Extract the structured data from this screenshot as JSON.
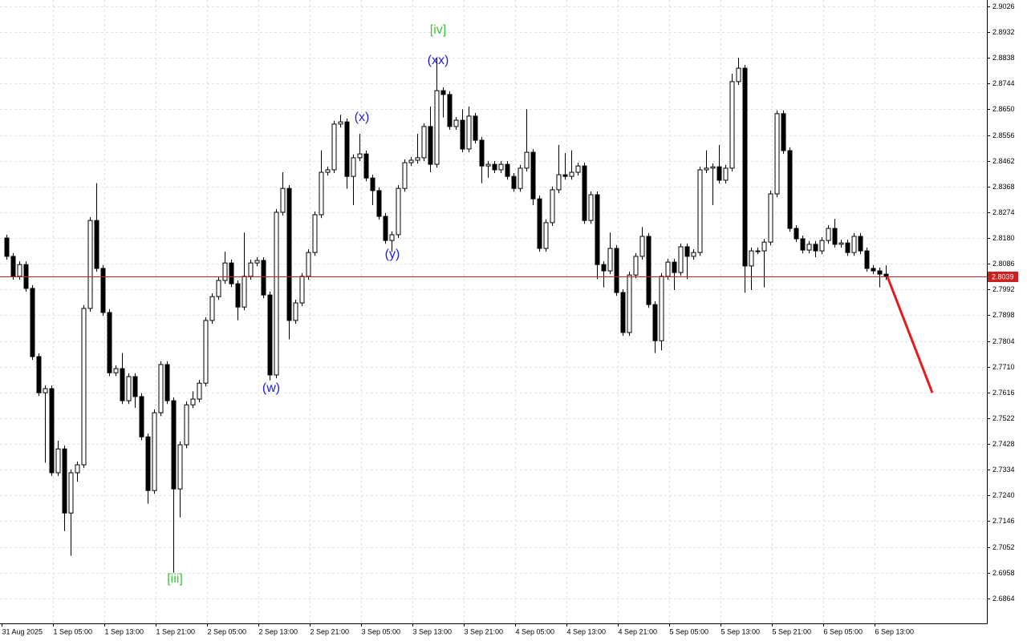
{
  "chart_data": {
    "type": "candlestick",
    "ylim": [
      2.6773,
      2.9049
    ],
    "yticks": [
      2.9026,
      2.8932,
      2.8838,
      2.8744,
      {
        "value": 2.865,
        "label": "2.8650"
      },
      2.8556,
      2.8462,
      2.8368,
      2.8274,
      {
        "value": 2.818,
        "label": "2.8180"
      },
      2.8086,
      2.7992,
      2.7898,
      2.7804,
      {
        "value": 2.771,
        "label": "2.7710"
      },
      2.7616,
      2.7522,
      2.7428,
      2.7334,
      {
        "value": 2.724,
        "label": "2.7240"
      },
      2.7146,
      2.7052,
      2.6958,
      2.6864
    ],
    "grid": true,
    "up_color": "#ffffff",
    "down_color": "#000000",
    "categories": [
      "31 Aug 2025",
      null,
      null,
      null,
      null,
      null,
      null,
      null,
      "1 Sep 05:00",
      null,
      null,
      null,
      null,
      null,
      null,
      null,
      "1 Sep 13:00",
      null,
      null,
      null,
      null,
      null,
      null,
      null,
      "1 Sep 21:00",
      null,
      null,
      null,
      null,
      null,
      null,
      null,
      "2 Sep 05:00",
      null,
      null,
      null,
      null,
      null,
      null,
      null,
      "2 Sep 13:00",
      null,
      null,
      null,
      null,
      null,
      null,
      null,
      "2 Sep 21:00",
      null,
      null,
      null,
      null,
      null,
      null,
      null,
      "3 Sep 05:00",
      null,
      null,
      null,
      null,
      null,
      null,
      null,
      "3 Sep 13:00",
      null,
      null,
      null,
      null,
      null,
      null,
      null,
      "3 Sep 21:00",
      null,
      null,
      null,
      null,
      null,
      null,
      null,
      "4 Sep 05:00",
      null,
      null,
      null,
      null,
      null,
      null,
      null,
      "4 Sep 13:00",
      null,
      null,
      null,
      null,
      null,
      null,
      null,
      "4 Sep 21:00",
      null,
      null,
      null,
      null,
      null,
      null,
      null,
      "5 Sep 05:00",
      null,
      null,
      null,
      null,
      null,
      null,
      null,
      "5 Sep 13:00",
      null,
      null,
      null,
      null,
      null,
      null,
      null,
      "5 Sep 21:00",
      null,
      null,
      null,
      null,
      null,
      null,
      null,
      "6 Sep 05:00",
      null,
      null,
      null,
      null,
      null,
      null,
      null,
      "6 Sep 13:00",
      null
    ],
    "ohlc": [
      [
        2.818,
        2.8192,
        2.8101,
        2.8113
      ],
      [
        2.8113,
        2.8125,
        2.8028,
        2.804
      ],
      [
        2.804,
        2.8095,
        2.8028,
        2.8083
      ],
      [
        2.8083,
        2.8095,
        2.7984,
        2.7996
      ],
      [
        2.7996,
        2.8008,
        2.7735,
        2.7747
      ],
      [
        2.7747,
        2.7759,
        2.7603,
        2.7615
      ],
      [
        2.7615,
        2.7642,
        2.736,
        2.763
      ],
      [
        2.763,
        2.7642,
        2.7311,
        2.7323
      ],
      [
        2.7323,
        2.744,
        2.7311,
        2.741
      ],
      [
        2.741,
        2.7422,
        2.711,
        2.7176
      ],
      [
        2.7176,
        2.7335,
        2.702,
        2.7323
      ],
      [
        2.7323,
        2.7364,
        2.729,
        2.7352
      ],
      [
        2.7352,
        2.7935,
        2.734,
        2.7923
      ],
      [
        2.7923,
        2.8256,
        2.7911,
        2.8244
      ],
      [
        2.8244,
        2.838,
        2.8057,
        2.8069
      ],
      [
        2.8069,
        2.8081,
        2.7896,
        2.7908
      ],
      [
        2.7908,
        2.792,
        2.7676,
        2.7688
      ],
      [
        2.7688,
        2.7715,
        2.7676,
        2.7703
      ],
      [
        2.7703,
        2.776,
        2.7574,
        2.7586
      ],
      [
        2.7586,
        2.7686,
        2.7574,
        2.7674
      ],
      [
        2.7674,
        2.7686,
        2.756,
        2.7601
      ],
      [
        2.7601,
        2.7613,
        2.7442,
        2.7454
      ],
      [
        2.7454,
        2.7466,
        2.721,
        2.7258
      ],
      [
        2.7258,
        2.7554,
        2.7246,
        2.7542
      ],
      [
        2.7542,
        2.773,
        2.753,
        2.7718
      ],
      [
        2.7718,
        2.773,
        2.7574,
        2.7586
      ],
      [
        2.7586,
        2.7598,
        2.6958,
        2.7264
      ],
      [
        2.7264,
        2.7437,
        2.716,
        2.7425
      ],
      [
        2.7425,
        2.7583,
        2.7413,
        2.7571
      ],
      [
        2.7571,
        2.762,
        2.7559,
        2.7592
      ],
      [
        2.7592,
        2.7662,
        2.758,
        2.765
      ],
      [
        2.765,
        2.7891,
        2.7638,
        2.7879
      ],
      [
        2.7879,
        2.7978,
        2.7867,
        2.7966
      ],
      [
        2.7966,
        2.8037,
        2.7954,
        2.8025
      ],
      [
        2.8025,
        2.813,
        2.8013,
        2.8089
      ],
      [
        2.8089,
        2.8101,
        2.8001,
        2.8013
      ],
      [
        2.8013,
        2.8025,
        2.788,
        2.7928
      ],
      [
        2.7928,
        2.82,
        2.7916,
        2.804
      ],
      [
        2.804,
        2.8101,
        2.8028,
        2.8089
      ],
      [
        2.8089,
        2.811,
        2.8077,
        2.8098
      ],
      [
        2.8098,
        2.811,
        2.796,
        2.7972
      ],
      [
        2.7972,
        2.7984,
        2.766,
        2.768
      ],
      [
        2.768,
        2.8286,
        2.7668,
        2.8274
      ],
      [
        2.8274,
        2.842,
        2.8262,
        2.8361
      ],
      [
        2.8361,
        2.8373,
        2.781,
        2.7879
      ],
      [
        2.7879,
        2.7955,
        2.7867,
        2.7943
      ],
      [
        2.7943,
        2.8052,
        2.7931,
        2.804
      ],
      [
        2.804,
        2.8139,
        2.8028,
        2.8127
      ],
      [
        2.8127,
        2.8277,
        2.8115,
        2.8265
      ],
      [
        2.8265,
        2.85,
        2.8253,
        2.842
      ],
      [
        2.842,
        2.8441,
        2.8408,
        2.8429
      ],
      [
        2.8429,
        2.8608,
        2.8417,
        2.8596
      ],
      [
        2.8596,
        2.863,
        2.8584,
        2.8604
      ],
      [
        2.8604,
        2.8616,
        2.836,
        2.8405
      ],
      [
        2.8405,
        2.8485,
        2.83,
        2.8473
      ],
      [
        2.8473,
        2.856,
        2.8461,
        2.8487
      ],
      [
        2.8487,
        2.8499,
        2.8387,
        2.8399
      ],
      [
        2.8399,
        2.8411,
        2.83,
        2.8353
      ],
      [
        2.8353,
        2.8365,
        2.8247,
        2.8259
      ],
      [
        2.8259,
        2.8271,
        2.8159,
        2.8171
      ],
      [
        2.8171,
        2.8204,
        2.813,
        2.8192
      ],
      [
        2.8192,
        2.8373,
        2.818,
        2.8361
      ],
      [
        2.8361,
        2.8467,
        2.8349,
        2.8455
      ],
      [
        2.8455,
        2.8476,
        2.8443,
        2.8464
      ],
      [
        2.8464,
        2.856,
        2.8452,
        2.8473
      ],
      [
        2.8473,
        2.8599,
        2.8461,
        2.8587
      ],
      [
        2.8587,
        2.866,
        2.842,
        2.8449
      ],
      [
        2.8449,
        2.8838,
        2.8437,
        2.8718
      ],
      [
        2.8718,
        2.873,
        2.862,
        2.8704
      ],
      [
        2.8704,
        2.8716,
        2.8575,
        2.8587
      ],
      [
        2.8587,
        2.8622,
        2.8575,
        2.861
      ],
      [
        2.861,
        2.865,
        2.8493,
        2.8505
      ],
      [
        2.8505,
        2.866,
        2.8493,
        2.8625
      ],
      [
        2.8625,
        2.8637,
        2.8525,
        2.8537
      ],
      [
        2.8537,
        2.8549,
        2.838,
        2.8443
      ],
      [
        2.8443,
        2.8461,
        2.84,
        2.8449
      ],
      [
        2.8449,
        2.8461,
        2.8417,
        2.8429
      ],
      [
        2.8429,
        2.8461,
        2.8417,
        2.8449
      ],
      [
        2.8449,
        2.8461,
        2.8393,
        2.8405
      ],
      [
        2.8405,
        2.8417,
        2.8349,
        2.8361
      ],
      [
        2.8361,
        2.8447,
        2.8349,
        2.8435
      ],
      [
        2.8435,
        2.865,
        2.8423,
        2.8493
      ],
      [
        2.8493,
        2.8505,
        2.83,
        2.8323
      ],
      [
        2.8323,
        2.8335,
        2.813,
        2.8142
      ],
      [
        2.8142,
        2.8248,
        2.813,
        2.8236
      ],
      [
        2.8236,
        2.8368,
        2.8224,
        2.8356
      ],
      [
        2.8356,
        2.852,
        2.8344,
        2.8411
      ],
      [
        2.8411,
        2.849,
        2.8393,
        2.8405
      ],
      [
        2.8405,
        2.85,
        2.8393,
        2.842
      ],
      [
        2.842,
        2.8455,
        2.8408,
        2.8443
      ],
      [
        2.8443,
        2.8455,
        2.8232,
        2.8244
      ],
      [
        2.8244,
        2.835,
        2.8232,
        2.8338
      ],
      [
        2.8338,
        2.835,
        2.803,
        2.8083
      ],
      [
        2.8083,
        2.8095,
        2.8,
        2.806
      ],
      [
        2.806,
        2.82,
        2.8048,
        2.8142
      ],
      [
        2.8142,
        2.8154,
        2.7969,
        2.7981
      ],
      [
        2.7981,
        2.7993,
        2.7823,
        2.7835
      ],
      [
        2.7835,
        2.8057,
        2.7823,
        2.8045
      ],
      [
        2.8045,
        2.8125,
        2.8033,
        2.8113
      ],
      [
        2.8113,
        2.822,
        2.8101,
        2.8186
      ],
      [
        2.8186,
        2.8198,
        2.7925,
        2.7937
      ],
      [
        2.7937,
        2.7949,
        2.776,
        2.7805
      ],
      [
        2.7805,
        2.8052,
        2.777,
        2.804
      ],
      [
        2.804,
        2.8104,
        2.8028,
        2.8092
      ],
      [
        2.8092,
        2.8104,
        2.799,
        2.8054
      ],
      [
        2.8054,
        2.816,
        2.8042,
        2.8148
      ],
      [
        2.8148,
        2.816,
        2.803,
        2.8113
      ],
      [
        2.8113,
        2.8139,
        2.8101,
        2.8127
      ],
      [
        2.8127,
        2.8441,
        2.8115,
        2.8429
      ],
      [
        2.8429,
        2.85,
        2.8417,
        2.8435
      ],
      [
        2.8435,
        2.8452,
        2.83,
        2.844
      ],
      [
        2.844,
        2.852,
        2.8379,
        2.8391
      ],
      [
        2.8391,
        2.8447,
        2.8379,
        2.8435
      ],
      [
        2.8435,
        2.878,
        2.8423,
        2.8751
      ],
      [
        2.8751,
        2.8838,
        2.8739,
        2.88
      ],
      [
        2.88,
        2.8812,
        2.798,
        2.8078
      ],
      [
        2.8078,
        2.8145,
        2.799,
        2.8133
      ],
      [
        2.8133,
        2.8145,
        2.8121,
        2.8133
      ],
      [
        2.8133,
        2.8177,
        2.8,
        2.8165
      ],
      [
        2.8165,
        2.8353,
        2.8153,
        2.8341
      ],
      [
        2.8341,
        2.8646,
        2.8329,
        2.8634
      ],
      [
        2.8634,
        2.8646,
        2.8487,
        2.8499
      ],
      [
        2.8499,
        2.8511,
        2.8203,
        2.8215
      ],
      [
        2.8215,
        2.8227,
        2.8165,
        2.8177
      ],
      [
        2.8177,
        2.8189,
        2.8124,
        2.8136
      ],
      [
        2.8136,
        2.8169,
        2.8124,
        2.8157
      ],
      [
        2.8157,
        2.8169,
        2.811,
        2.8133
      ],
      [
        2.8133,
        2.8183,
        2.8121,
        2.8171
      ],
      [
        2.8171,
        2.8227,
        2.8159,
        2.8215
      ],
      [
        2.8215,
        2.825,
        2.8145,
        2.8157
      ],
      [
        2.8157,
        2.8174,
        2.8145,
        2.8162
      ],
      [
        2.8162,
        2.8174,
        2.8115,
        2.8127
      ],
      [
        2.8127,
        2.8198,
        2.8115,
        2.8186
      ],
      [
        2.8186,
        2.8198,
        2.8121,
        2.8133
      ],
      [
        2.8133,
        2.8145,
        2.8057,
        2.8069
      ],
      [
        2.8069,
        2.8081,
        2.8048,
        2.806
      ],
      [
        2.806,
        2.8072,
        2.8,
        2.8048
      ],
      [
        2.8048,
        2.808,
        2.8027,
        2.8039
      ]
    ],
    "last_price": 2.8039,
    "price_line_color": "#cc1f1f",
    "forecast": {
      "color": "#e8191d",
      "values": [
        2.8039,
        2.7615
      ]
    },
    "annotations": [
      {
        "text": "[iii]",
        "color": "#3cc43c"
      },
      {
        "text": "(w)",
        "color": "#1d1dd6"
      },
      {
        "text": "(x)",
        "color": "#1d1dd6"
      },
      {
        "text": "(y)",
        "color": "#1d1dd6"
      },
      {
        "text": "(xx)",
        "color": "#1d1dd6"
      },
      {
        "text": "[iv]",
        "color": "#3cc43c"
      }
    ]
  }
}
